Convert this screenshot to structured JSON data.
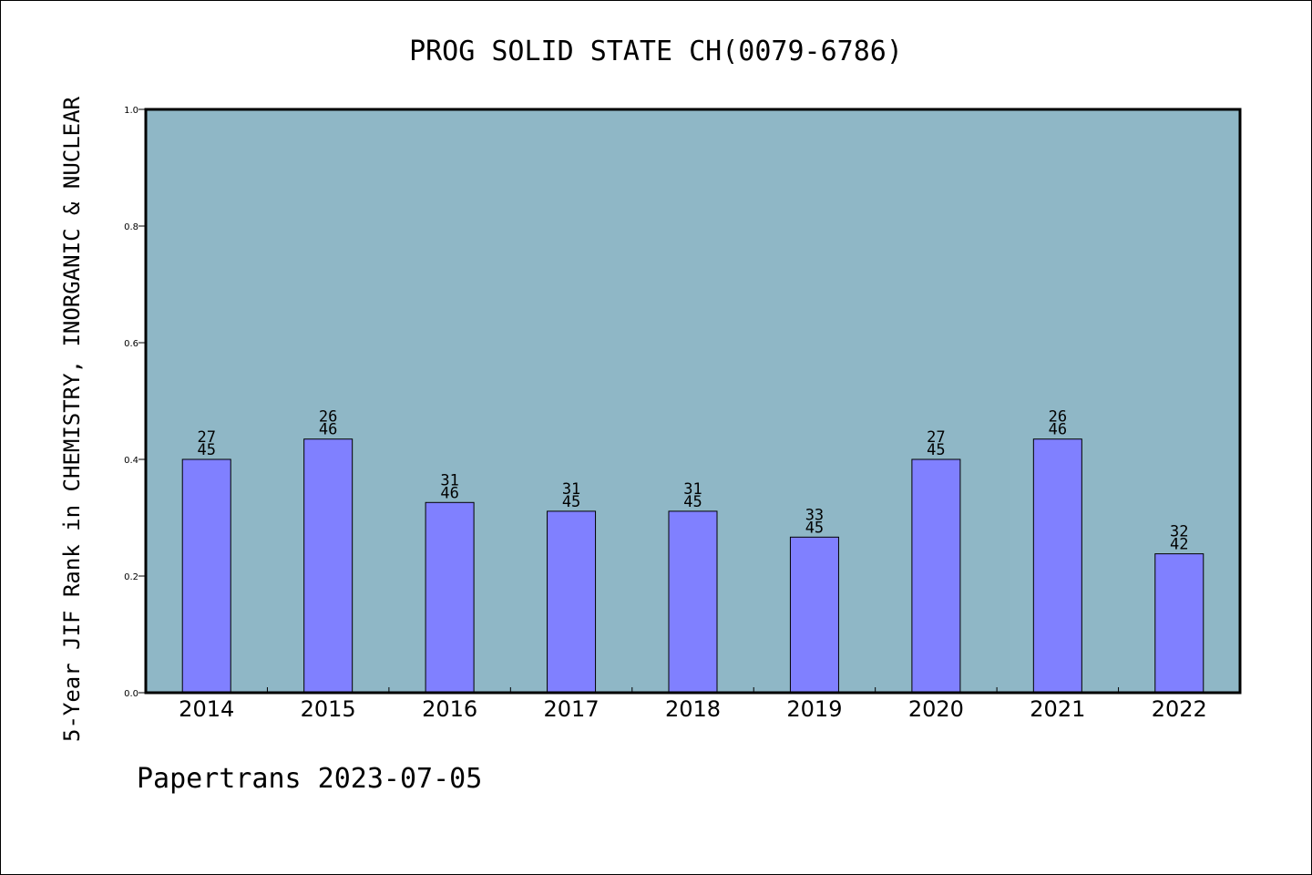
{
  "chart_data": {
    "type": "bar",
    "title": "PROG SOLID STATE CH(0079-6786)",
    "ylabel": "5-Year JIF Rank in CHEMISTRY, INORGANIC & NUCLEAR",
    "xlabel": "",
    "ylim": [
      0,
      1.0
    ],
    "yticks": [
      "0.0",
      "0.2",
      "0.4",
      "0.6",
      "0.8",
      "1.0"
    ],
    "categories": [
      "2014",
      "2015",
      "2016",
      "2017",
      "2018",
      "2019",
      "2020",
      "2021",
      "2022"
    ],
    "values": [
      0.4,
      0.4348,
      0.3261,
      0.3111,
      0.3111,
      0.2667,
      0.4,
      0.4348,
      0.2381
    ],
    "rank_labels": [
      {
        "rank": "27",
        "total": "45"
      },
      {
        "rank": "26",
        "total": "46"
      },
      {
        "rank": "31",
        "total": "46"
      },
      {
        "rank": "31",
        "total": "45"
      },
      {
        "rank": "31",
        "total": "45"
      },
      {
        "rank": "33",
        "total": "45"
      },
      {
        "rank": "27",
        "total": "45"
      },
      {
        "rank": "26",
        "total": "46"
      },
      {
        "rank": "32",
        "total": "42"
      }
    ],
    "grid": false,
    "colors": {
      "plot_background": "#8fb7c6",
      "bar_fill": "#8080ff",
      "bar_stroke": "#000000"
    }
  },
  "footer": {
    "credit": "Papertrans 2023-07-05"
  }
}
